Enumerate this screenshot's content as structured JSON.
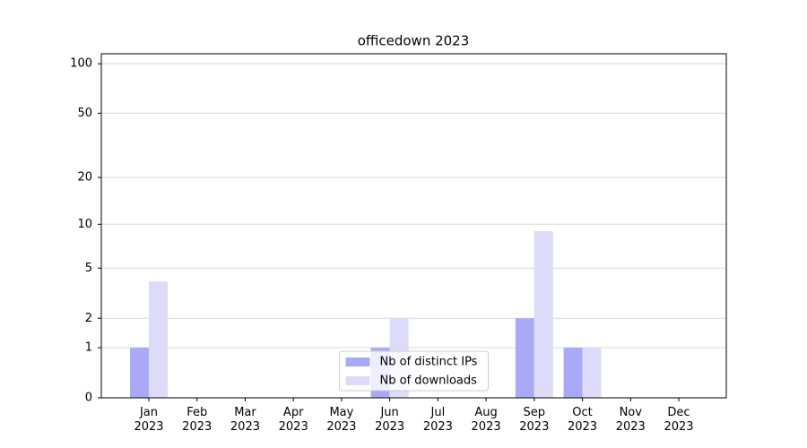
{
  "chart_data": {
    "type": "bar",
    "title": "officedown 2023",
    "categories": [
      "Jan 2023",
      "Feb 2023",
      "Mar 2023",
      "Apr 2023",
      "May 2023",
      "Jun 2023",
      "Jul 2023",
      "Aug 2023",
      "Sep 2023",
      "Oct 2023",
      "Nov 2023",
      "Dec 2023"
    ],
    "series": [
      {
        "name": "Nb of distinct IPs",
        "color": "#a9a9f7",
        "values": [
          1,
          0,
          0,
          0,
          0,
          1,
          0,
          0,
          2,
          1,
          0,
          0
        ]
      },
      {
        "name": "Nb of downloads",
        "color": "#dcdcfa",
        "values": [
          4,
          0,
          0,
          0,
          0,
          2,
          0,
          0,
          9,
          1,
          0,
          0
        ]
      }
    ],
    "y_scale": "log1p",
    "ylim": [
      0,
      115
    ],
    "yticks": [
      0,
      1,
      2,
      5,
      10,
      20,
      50,
      100
    ],
    "grid": true,
    "legend": "lower center"
  }
}
